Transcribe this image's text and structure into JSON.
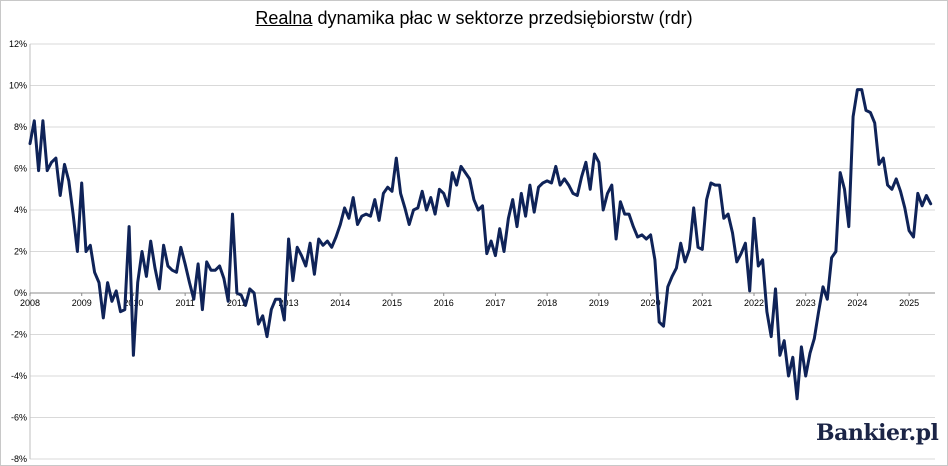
{
  "page": {
    "title_underlined": "Realna",
    "title_rest": " dynamika płac w sektorze przedsiębiorstw (rdr)",
    "logo_text": "Bankier.pl"
  },
  "chart_data": {
    "type": "line",
    "title": "Realna dynamika płac w sektorze przedsiębiorstw (rdr)",
    "xlabel": "",
    "ylabel": "",
    "xlim": [
      2008.0,
      2025.5
    ],
    "ylim": [
      -8,
      12
    ],
    "y_ticks": [
      -8,
      -6,
      -4,
      -2,
      0,
      2,
      4,
      6,
      8,
      10,
      12
    ],
    "y_tick_labels": [
      "-8%",
      "-6%",
      "-4%",
      "-2%",
      "0%",
      "2%",
      "4%",
      "6%",
      "8%",
      "10%",
      "12%"
    ],
    "x_ticks": [
      2008,
      2009,
      2010,
      2011,
      2012,
      2013,
      2014,
      2015,
      2016,
      2017,
      2018,
      2019,
      2020,
      2021,
      2022,
      2023,
      2024,
      2025
    ],
    "x_tick_labels": [
      "2008",
      "2009",
      "2010",
      "2011",
      "2012",
      "2013",
      "2014",
      "2015",
      "2016",
      "2017",
      "2018",
      "2019",
      "2020",
      "2021",
      "2022",
      "2023",
      "2024",
      "2025"
    ],
    "grid": true,
    "legend": "none",
    "color": "#0f2358",
    "series": [
      {
        "name": "",
        "start_year": 2008,
        "start_month": 1,
        "frequency": "monthly",
        "values": [
          7.2,
          8.3,
          5.9,
          8.3,
          5.9,
          6.3,
          6.5,
          4.7,
          6.2,
          5.4,
          3.8,
          2.0,
          5.3,
          2.0,
          2.3,
          1.0,
          0.5,
          -1.2,
          0.5,
          -0.4,
          0.1,
          -0.9,
          -0.8,
          3.2,
          -3.0,
          0.5,
          2.0,
          0.8,
          2.5,
          1.2,
          0.2,
          2.3,
          1.3,
          1.1,
          1.0,
          2.2,
          1.4,
          0.5,
          -0.3,
          1.4,
          -0.8,
          1.5,
          1.1,
          1.1,
          1.3,
          0.7,
          -0.4,
          3.8,
          0.0,
          -0.1,
          -0.6,
          0.2,
          0.0,
          -1.5,
          -1.1,
          -2.1,
          -0.8,
          -0.3,
          -0.3,
          -1.3,
          2.6,
          0.6,
          2.2,
          1.8,
          1.3,
          2.4,
          0.9,
          2.6,
          2.3,
          2.5,
          2.2,
          2.7,
          3.3,
          4.1,
          3.6,
          4.6,
          3.3,
          3.7,
          3.8,
          3.7,
          4.5,
          3.5,
          4.8,
          5.1,
          4.9,
          6.5,
          4.8,
          4.1,
          3.3,
          4.0,
          4.1,
          4.9,
          4.0,
          4.6,
          3.8,
          5.0,
          4.8,
          4.2,
          5.8,
          5.2,
          6.1,
          5.8,
          5.5,
          4.5,
          4.0,
          4.2,
          1.9,
          2.5,
          1.8,
          3.1,
          2.0,
          3.6,
          4.5,
          3.2,
          4.8,
          3.7,
          5.2,
          3.9,
          5.1,
          5.3,
          5.4,
          5.3,
          6.1,
          5.2,
          5.5,
          5.2,
          4.8,
          4.7,
          5.6,
          6.3,
          5.0,
          6.7,
          6.3,
          4.0,
          4.8,
          5.2,
          2.6,
          4.4,
          3.8,
          3.8,
          3.2,
          2.7,
          2.8,
          2.6,
          2.8,
          1.6,
          -1.4,
          -1.6,
          0.3,
          0.8,
          1.2,
          2.4,
          1.5,
          2.1,
          4.1,
          2.2,
          2.1,
          4.5,
          5.3,
          5.2,
          5.2,
          3.6,
          3.8,
          2.9,
          1.5,
          1.9,
          2.4,
          0.1,
          3.6,
          1.3,
          1.6,
          -0.9,
          -2.1,
          0.2,
          -3.0,
          -2.3,
          -4.0,
          -3.1,
          -5.1,
          -2.6,
          -4.0,
          -2.9,
          -2.2,
          -0.9,
          0.3,
          -0.3,
          1.7,
          2.0,
          5.8,
          5.0,
          3.2,
          8.5,
          9.8,
          9.8,
          8.8,
          8.7,
          8.2,
          6.2,
          6.5,
          5.2,
          5.0,
          5.5,
          4.9,
          4.1,
          3.0,
          2.7,
          4.8,
          4.2,
          4.7,
          4.3
        ]
      }
    ]
  }
}
